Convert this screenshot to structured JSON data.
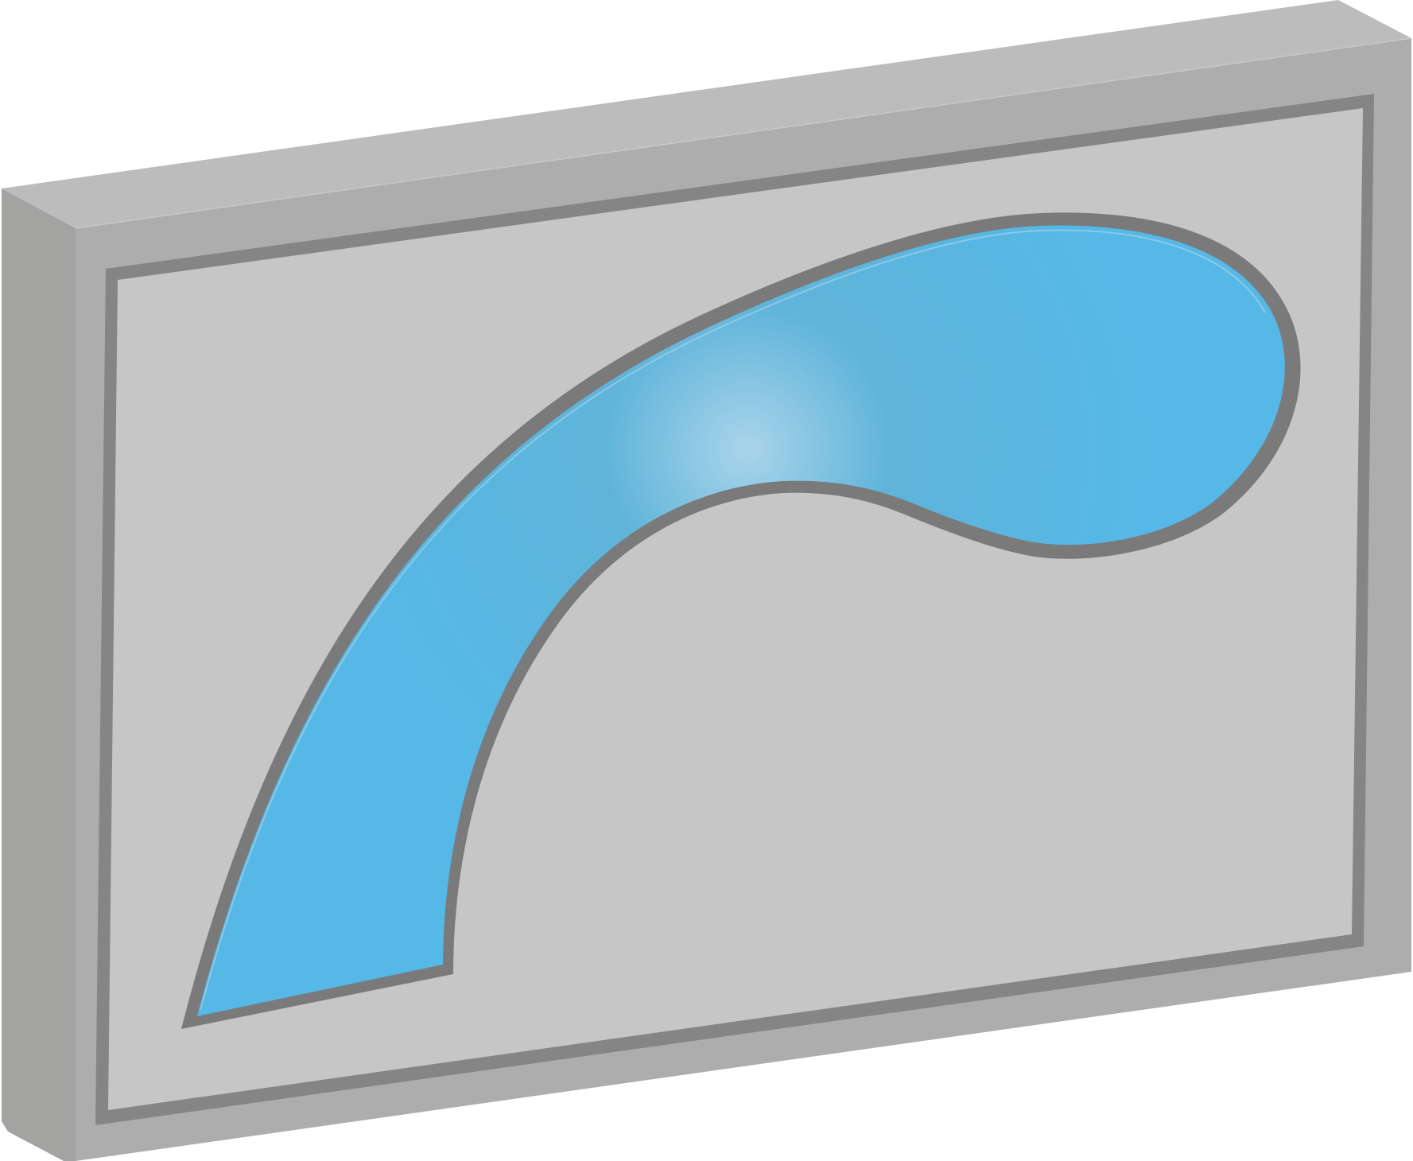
{
  "object": {
    "kind": "isometric-panel-with-channel",
    "colors": {
      "frame_top": "#bcbcbc",
      "frame_side": "#a3a3a2",
      "frame_face": "#adadad",
      "inner_border": "#858585",
      "inner_panel": "#c6c6c6",
      "channel_fill": "#55b8e6",
      "channel_highlight": "#a9d4ea",
      "channel_outline": "#7a7a7a"
    }
  }
}
